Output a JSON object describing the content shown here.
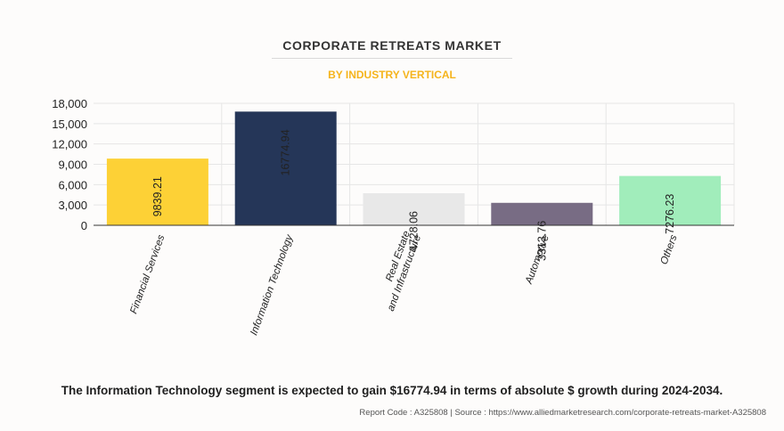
{
  "chart_data": {
    "type": "bar",
    "title": "CORPORATE RETREATS MARKET",
    "subtitle": "BY INDUSTRY VERTICAL",
    "categories": [
      "Financial Services",
      "Information Technology",
      "Real Estate and Infrastructure",
      "Automotive",
      "Others"
    ],
    "category_lines": [
      [
        "Financial Services"
      ],
      [
        "Information Technology"
      ],
      [
        "Real Estate",
        "and Infrastructure"
      ],
      [
        "Automotive"
      ],
      [
        "Others"
      ]
    ],
    "values": [
      9839.21,
      16774.94,
      4728.06,
      3313.76,
      7276.23
    ],
    "value_labels": [
      "9839.21",
      "16774.94",
      "4728.06",
      "3313.76",
      "7276.23"
    ],
    "colors": [
      "#fdd136",
      "#253658",
      "#e8e8e8",
      "#786c84",
      "#a1edbb"
    ],
    "ylim": [
      0,
      18000
    ],
    "yticks": [
      0,
      3000,
      6000,
      9000,
      12000,
      15000,
      18000
    ],
    "ytick_labels": [
      "0",
      "3,000",
      "6,000",
      "9,000",
      "12,000",
      "15,000",
      "18,000"
    ],
    "xlabel": "",
    "ylabel": "",
    "grid": true
  },
  "footnote": "The Information Technology segment is expected to gain $16774.94 in terms of absolute $ growth during 2024-2034.",
  "source": "Report Code : A325808  |  Source : https://www.alliedmarketresearch.com/corporate-retreats-market-A325808"
}
